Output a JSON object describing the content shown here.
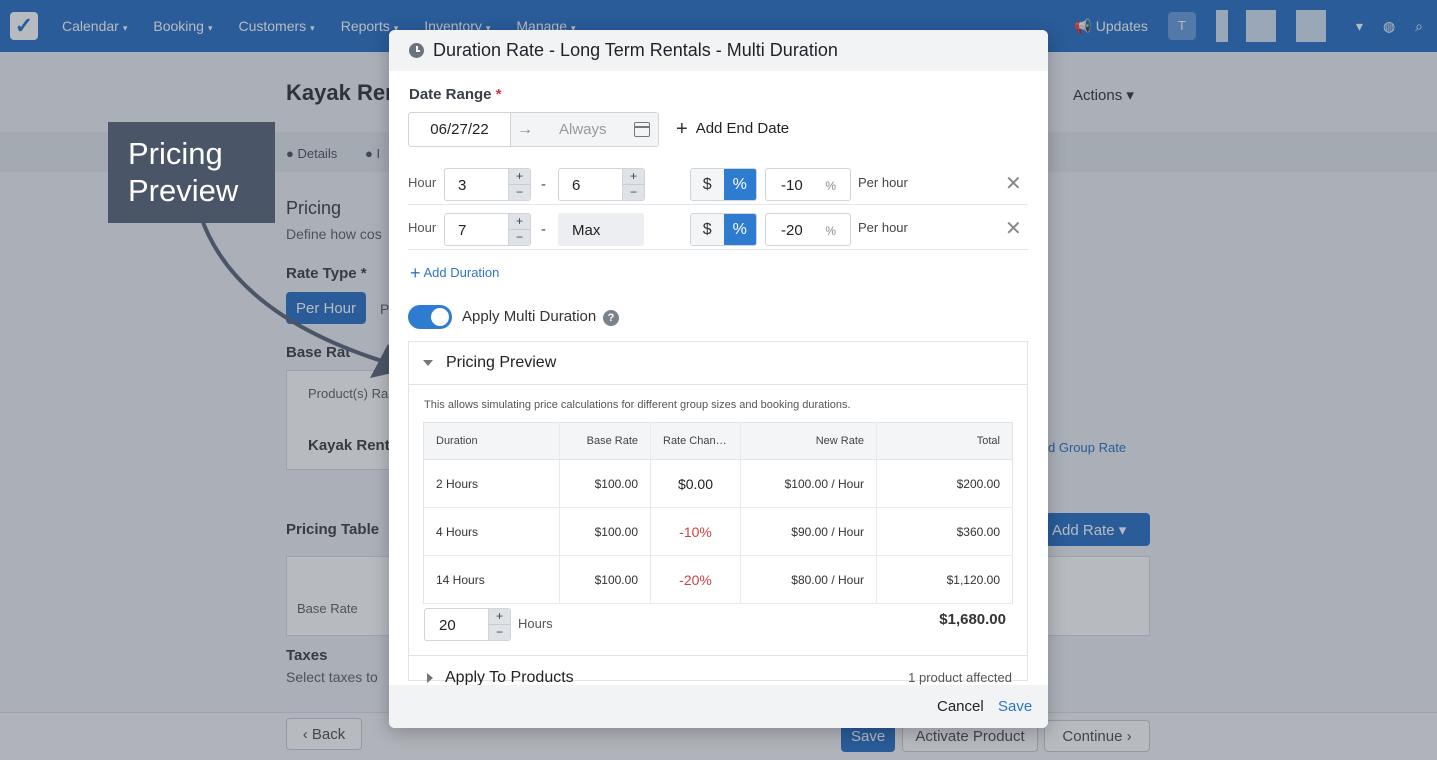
{
  "nav": {
    "items": [
      "Calendar",
      "Booking",
      "Customers",
      "Reports",
      "Inventory",
      "Manage"
    ],
    "updates": "Updates",
    "avatar": "T"
  },
  "background": {
    "page_title": "Kayak Ren",
    "actions": "Actions",
    "tabs": [
      "Details",
      "I"
    ],
    "pricing_heading": "Pricing",
    "pricing_desc": "Define how cos",
    "rate_type_label": "Rate Type *",
    "per_hour_btn": "Per Hour",
    "p_btn": "P",
    "base_rate_label": "Base Rat",
    "products_ra": "Product(s) Ra",
    "kayak_rent": "Kayak Rent",
    "group_rate": "d Group Rate",
    "pricing_table": "Pricing Table",
    "add_rate": "Add Rate",
    "base_rate_row": "Base Rate",
    "taxes": "Taxes",
    "taxes_desc": "Select taxes to",
    "back": "Back",
    "save": "Save",
    "activate": "Activate Product",
    "continue": "Continue"
  },
  "callout": {
    "line1": "Pricing",
    "line2": "Preview"
  },
  "modal": {
    "title": "Duration Rate - Long Term Rentals - Multi Duration",
    "date_range_label": "Date Range",
    "required_mark": "*",
    "start_date": "06/27/22",
    "end_date": "Always",
    "add_end_date": "Add End Date",
    "durations": [
      {
        "unit": "Hour",
        "from": "3",
        "to": "6",
        "dollar": "$",
        "pct": "%",
        "amount": "-10",
        "amount_unit": "%",
        "per": "Per hour"
      },
      {
        "unit": "Hour",
        "from": "7",
        "to": "Max",
        "dollar": "$",
        "pct": "%",
        "amount": "-20",
        "amount_unit": "%",
        "per": "Per hour"
      }
    ],
    "add_duration": "Add Duration",
    "apply_multi": "Apply Multi Duration",
    "help": "?",
    "preview": {
      "title": "Pricing Preview",
      "description": "This allows simulating price calculations for different group sizes and booking durations.",
      "columns": [
        "Duration",
        "Base Rate",
        "Rate Chan…",
        "New Rate",
        "Total"
      ],
      "rows": [
        {
          "duration": "2 Hours",
          "base": "$100.00",
          "change": "$0.00",
          "new_rate": "$100.00 / Hour",
          "total": "$200.00"
        },
        {
          "duration": "4 Hours",
          "base": "$100.00",
          "change": "-10%",
          "new_rate": "$90.00 / Hour",
          "total": "$360.00"
        },
        {
          "duration": "14 Hours",
          "base": "$100.00",
          "change": "-20%",
          "new_rate": "$80.00 / Hour",
          "total": "$1,120.00"
        }
      ],
      "hours_value": "20",
      "hours_label": "Hours",
      "grand_total": "$1,680.00"
    },
    "apply_products": {
      "title": "Apply To Products",
      "count": "1 product affected"
    },
    "cancel": "Cancel",
    "save": "Save"
  },
  "colors": {
    "accent": "#2e7cd0",
    "negative": "#d24141",
    "callout_bg": "#4a5667"
  }
}
